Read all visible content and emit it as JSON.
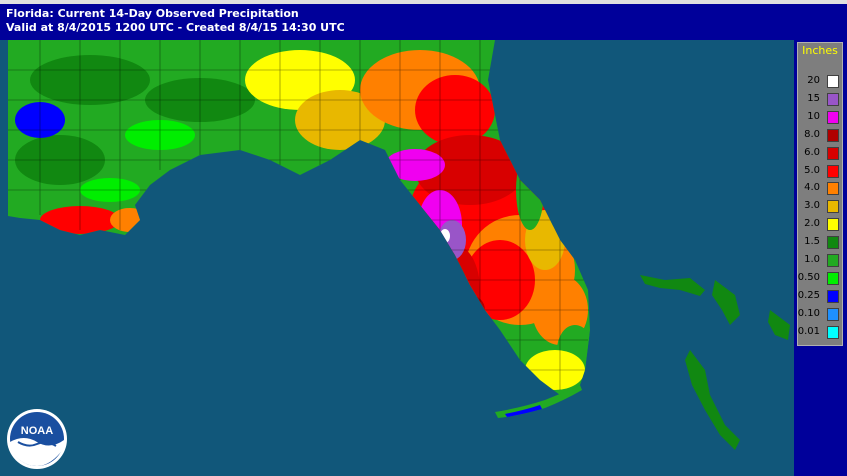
{
  "header": {
    "title": "Florida: Current 14-Day Observed Precipitation",
    "subtitle": "Valid at 8/4/2015 1200 UTC - Created 8/4/15 14:30 UTC"
  },
  "legend": {
    "title": "Inches",
    "items": [
      {
        "label": "20",
        "color": "#ffffff"
      },
      {
        "label": "15",
        "color": "#9955c8"
      },
      {
        "label": "10",
        "color": "#f000f0"
      },
      {
        "label": "8.0",
        "color": "#b00000"
      },
      {
        "label": "6.0",
        "color": "#d80000"
      },
      {
        "label": "5.0",
        "color": "#ff0000"
      },
      {
        "label": "4.0",
        "color": "#ff8000"
      },
      {
        "label": "3.0",
        "color": "#e8b800"
      },
      {
        "label": "2.0",
        "color": "#ffff00"
      },
      {
        "label": "1.5",
        "color": "#118811"
      },
      {
        "label": "1.0",
        "color": "#22aa22"
      },
      {
        "label": "0.50",
        "color": "#00ee00"
      },
      {
        "label": "0.25",
        "color": "#0000ff"
      },
      {
        "label": "0.10",
        "color": "#1e90ff"
      },
      {
        "label": "0.01",
        "color": "#00ffff"
      }
    ]
  },
  "logo": {
    "text": "NOAA",
    "icon": "noaa-logo-icon"
  },
  "colors": {
    "header_bg": "#00009a",
    "ocean": "#11577a",
    "legend_bg": "#7e7e7e",
    "legend_title": "#ffff00"
  }
}
